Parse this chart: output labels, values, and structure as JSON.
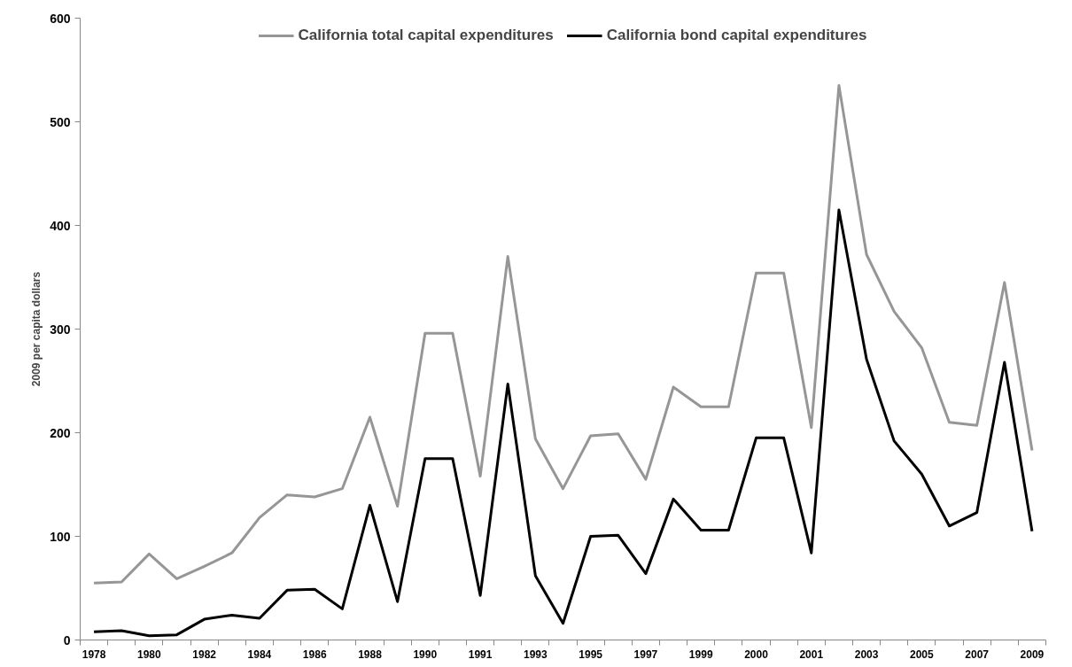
{
  "chart_data": {
    "type": "line",
    "ylabel": "2009 per capita dollars",
    "categories": [
      "1978",
      null,
      "1980",
      null,
      "1982",
      null,
      "1984",
      null,
      "1986",
      null,
      "1988",
      null,
      "1990",
      null,
      "1991",
      null,
      "1993",
      null,
      "1995",
      null,
      "1997",
      null,
      "1999",
      null,
      "2000",
      null,
      "2001",
      null,
      "2003",
      null,
      "2005",
      null,
      "2007",
      null,
      "2009"
    ],
    "series": [
      {
        "name": "California total capital expenditures",
        "color": "#969696",
        "values": [
          55,
          56,
          83,
          59,
          71,
          84,
          118,
          140,
          138,
          146,
          215,
          129,
          296,
          296,
          158,
          370,
          194,
          146,
          197,
          199,
          155,
          244,
          225,
          225,
          354,
          354,
          205,
          535,
          372,
          317,
          282,
          210,
          207,
          345,
          183
        ]
      },
      {
        "name": "California bond capital expenditures",
        "color": "#000000",
        "values": [
          8,
          9,
          4,
          5,
          20,
          24,
          21,
          48,
          49,
          30,
          130,
          37,
          175,
          175,
          43,
          247,
          62,
          16,
          100,
          101,
          64,
          136,
          106,
          106,
          195,
          195,
          84,
          415,
          271,
          192,
          160,
          110,
          123,
          268,
          105
        ]
      }
    ],
    "ylim": [
      0,
      600
    ],
    "yticks": [
      0,
      100,
      200,
      300,
      400,
      500,
      600
    ],
    "grid": false,
    "legend": "top",
    "marker": "none",
    "line_style": "solid"
  }
}
